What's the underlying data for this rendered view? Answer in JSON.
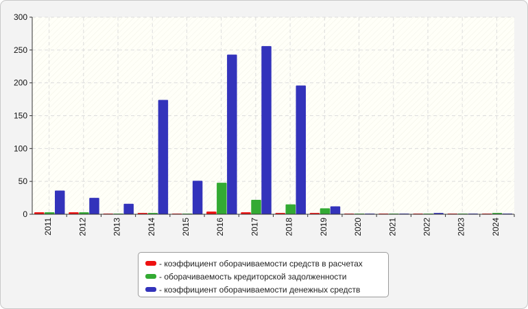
{
  "chart_data": {
    "type": "bar",
    "categories": [
      "2011",
      "2012",
      "2013",
      "2014",
      "2015",
      "2016",
      "2017",
      "2018",
      "2019",
      "2020",
      "2021",
      "2022",
      "2023",
      "2024"
    ],
    "series": [
      {
        "name": "- коэффициент оборачиваемости средств в расчетах",
        "color": "#ee1111",
        "values": [
          3,
          3,
          1,
          2,
          1,
          4,
          3,
          2,
          2,
          1,
          1,
          1,
          1,
          1
        ]
      },
      {
        "name": "- оборачиваемость кредиторской задолженности",
        "color": "#33aa33",
        "values": [
          3,
          3,
          1,
          2,
          1,
          48,
          22,
          15,
          9,
          1,
          1,
          1,
          1,
          2
        ]
      },
      {
        "name": "- коэффициент оборачиваемости денежных средств",
        "color": "#3333bb",
        "values": [
          36,
          25,
          16,
          174,
          51,
          243,
          256,
          196,
          12,
          1,
          1,
          2,
          1,
          1
        ]
      }
    ],
    "yticks": [
      0,
      50,
      100,
      150,
      200,
      250,
      300
    ],
    "ylim": [
      0,
      300
    ],
    "grid": true,
    "legend_position": "bottom-center",
    "title": "",
    "xlabel": "",
    "ylabel": ""
  }
}
